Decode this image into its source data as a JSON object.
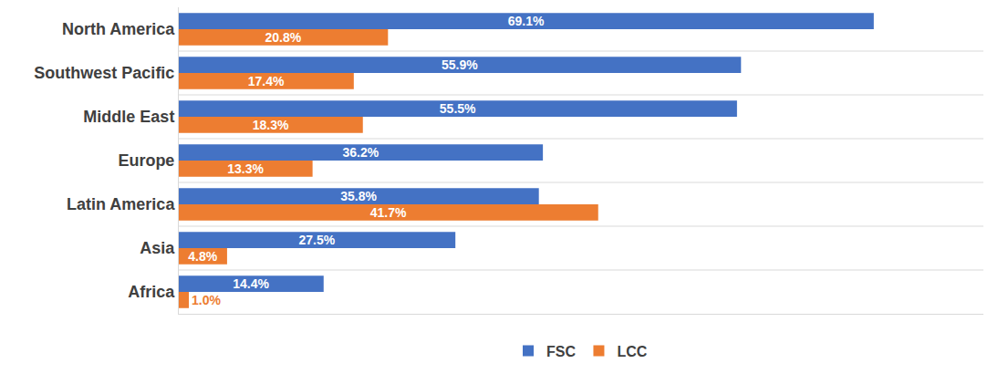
{
  "chart_data": {
    "type": "bar",
    "orientation": "horizontal",
    "categories": [
      "North America",
      "Southwest Pacific",
      "Middle East",
      "Europe",
      "Latin America",
      "Asia",
      "Africa"
    ],
    "series": [
      {
        "name": "FSC",
        "color": "#4472c4",
        "values": [
          69.1,
          55.9,
          55.5,
          36.2,
          35.8,
          27.5,
          14.4
        ],
        "value_labels": [
          "69.1%",
          "55.9%",
          "55.5%",
          "36.2%",
          "35.8%",
          "27.5%",
          "14.4%"
        ]
      },
      {
        "name": "LCC",
        "color": "#ed7d31",
        "values": [
          20.8,
          17.4,
          18.3,
          13.3,
          41.7,
          4.8,
          1.0
        ],
        "value_labels": [
          "20.8%",
          "17.4%",
          "18.3%",
          "13.3%",
          "41.7%",
          "4.8%",
          "1.0%"
        ]
      }
    ],
    "xlim": [
      0,
      80
    ],
    "data_labels": true,
    "tick_labels": "y",
    "legend": "bottom"
  }
}
